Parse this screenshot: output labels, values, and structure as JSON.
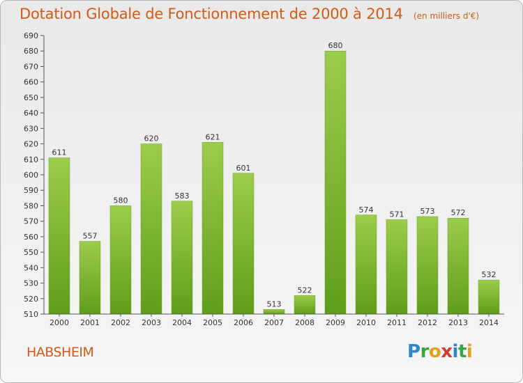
{
  "title": "Dotation Globale de Fonctionnement de 2000 à 2014",
  "subtitle": "(en milliers d'€)",
  "commune": "HABSHEIM",
  "logo": {
    "letters": [
      {
        "ch": "P",
        "color": "#2e86c8"
      },
      {
        "ch": "r",
        "color": "#3da246"
      },
      {
        "ch": "o",
        "color": "#e0a020"
      },
      {
        "ch": "x",
        "color": "#d33b2c"
      },
      {
        "ch": "i",
        "color": "#2e86c8"
      },
      {
        "ch": "t",
        "color": "#3da246"
      },
      {
        "ch": "i",
        "color": "#e0a020"
      }
    ]
  },
  "chart_data": {
    "type": "bar",
    "categories": [
      "2000",
      "2001",
      "2002",
      "2003",
      "2004",
      "2005",
      "2006",
      "2007",
      "2008",
      "2009",
      "2010",
      "2011",
      "2012",
      "2013",
      "2014"
    ],
    "values": [
      611,
      557,
      580,
      620,
      583,
      621,
      601,
      513,
      522,
      680,
      574,
      571,
      573,
      572,
      532
    ],
    "ylim": [
      510,
      690
    ],
    "ytick_step": 10,
    "grid": false,
    "bar_color_top": "#9ccc4a",
    "bar_color_bottom": "#5f9e1a",
    "title": "Dotation Globale de Fonctionnement de 2000 à 2014"
  }
}
